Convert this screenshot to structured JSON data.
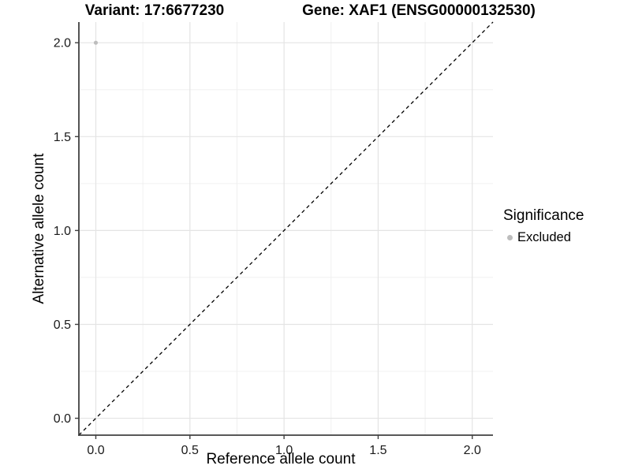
{
  "chart_data": {
    "type": "scatter",
    "titles": {
      "variant": "Variant: 17:6677230",
      "gene": "Gene: XAF1 (ENSG00000132530)"
    },
    "xlabel": "Reference allele count",
    "ylabel": "Alternative allele count",
    "xlim": [
      -0.09,
      2.11
    ],
    "ylim": [
      -0.09,
      2.11
    ],
    "x_ticks": [
      0,
      0.5,
      1,
      1.5,
      2
    ],
    "x_tick_labels": [
      "0.0",
      "0.5",
      "1.0",
      "1.5",
      "2.0"
    ],
    "y_ticks": [
      0,
      0.5,
      1,
      1.5,
      2
    ],
    "y_tick_labels": [
      "0.0",
      "0.5",
      "1.0",
      "1.5",
      "2.0"
    ],
    "minor_ticks": [
      0.25,
      0.75,
      1.25,
      1.75
    ],
    "grid": "major+minor",
    "series": [
      {
        "name": "Excluded",
        "marker": "circle",
        "color": "#bdbdbd",
        "points": [
          {
            "x": 0.0,
            "y": 2.0
          }
        ]
      }
    ],
    "identity_line": {
      "style": "dashed",
      "color": "#000000",
      "from": [
        -0.09,
        -0.09
      ],
      "to": [
        2.11,
        2.11
      ]
    },
    "legend": {
      "title": "Significance",
      "position": "right",
      "items": [
        {
          "label": "Excluded",
          "marker": "circle",
          "color": "#bdbdbd"
        }
      ]
    },
    "style": {
      "background": "#ffffff",
      "grid_major": "#e4e4e4",
      "grid_minor": "#f0f0f0",
      "axis_line": "#404040",
      "tick_text": "#1a1a1a",
      "title_color": "#000000"
    }
  }
}
